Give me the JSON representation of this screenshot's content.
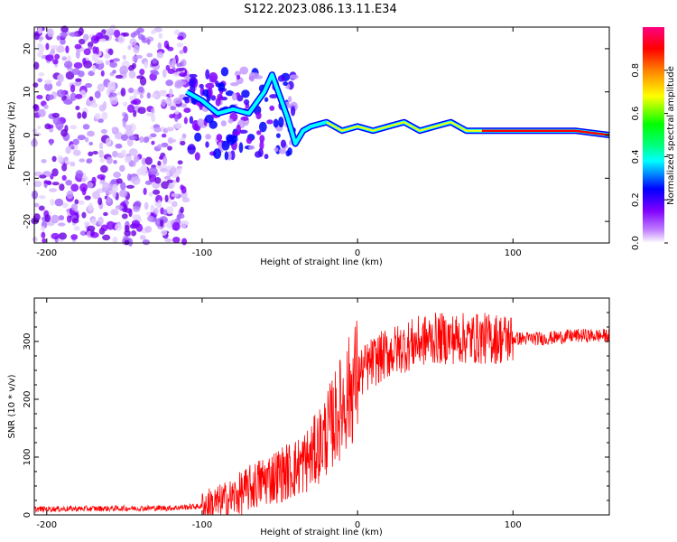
{
  "title": "S122.2023.086.13.11.E34",
  "chart_data": [
    {
      "type": "heatmap",
      "xlabel": "Height of straight line (km)",
      "ylabel": "Frequency (Hz)",
      "xlim": [
        -208,
        162
      ],
      "ylim": [
        -25,
        25
      ],
      "x_ticks": [
        -200,
        -100,
        0,
        100
      ],
      "y_ticks": [
        -20,
        -10,
        0,
        10,
        20
      ],
      "colorbar": {
        "label": "Normalized spectral amplitude",
        "range": [
          0,
          1
        ],
        "ticks": [
          0.0,
          0.2,
          0.4,
          0.6,
          0.8
        ],
        "colormap": [
          "#ffffff",
          "#8000ff",
          "#0000ff",
          "#00ffff",
          "#00ff00",
          "#ffff00",
          "#ff0000",
          "#ff0080"
        ]
      },
      "ridge": {
        "description_points_x": [
          -110,
          -100,
          -90,
          -80,
          -70,
          -60,
          -55,
          -50,
          -45,
          -40,
          -35,
          -30,
          -20,
          -10,
          0,
          10,
          20,
          30,
          40,
          50,
          60,
          70,
          80,
          100,
          120,
          140,
          162
        ],
        "freq_hz": [
          10,
          8,
          5,
          6,
          5,
          10,
          14,
          9,
          4,
          -2,
          1,
          2,
          3,
          1,
          2,
          1,
          2,
          3,
          1,
          2,
          3,
          1,
          1,
          1,
          1,
          1,
          0
        ]
      }
    },
    {
      "type": "line",
      "xlabel": "Height of straight line (km)",
      "ylabel": "SNR (10 * v/v)",
      "xlim": [
        -208,
        162
      ],
      "ylim": [
        0,
        375
      ],
      "x_ticks": [
        -200,
        -100,
        0,
        100
      ],
      "y_ticks": [
        0,
        100,
        200,
        300
      ],
      "color": "#ff0000",
      "envelope": {
        "x": [
          -208,
          -120,
          -100,
          -90,
          -80,
          -70,
          -60,
          -50,
          -40,
          -30,
          -20,
          -10,
          0,
          10,
          20,
          30,
          40,
          50,
          60,
          70,
          80,
          100,
          120,
          140,
          162
        ],
        "y": [
          10,
          12,
          15,
          20,
          30,
          45,
          60,
          70,
          80,
          100,
          140,
          190,
          240,
          265,
          280,
          290,
          300,
          305,
          305,
          305,
          305,
          305,
          305,
          310,
          310
        ]
      }
    }
  ]
}
